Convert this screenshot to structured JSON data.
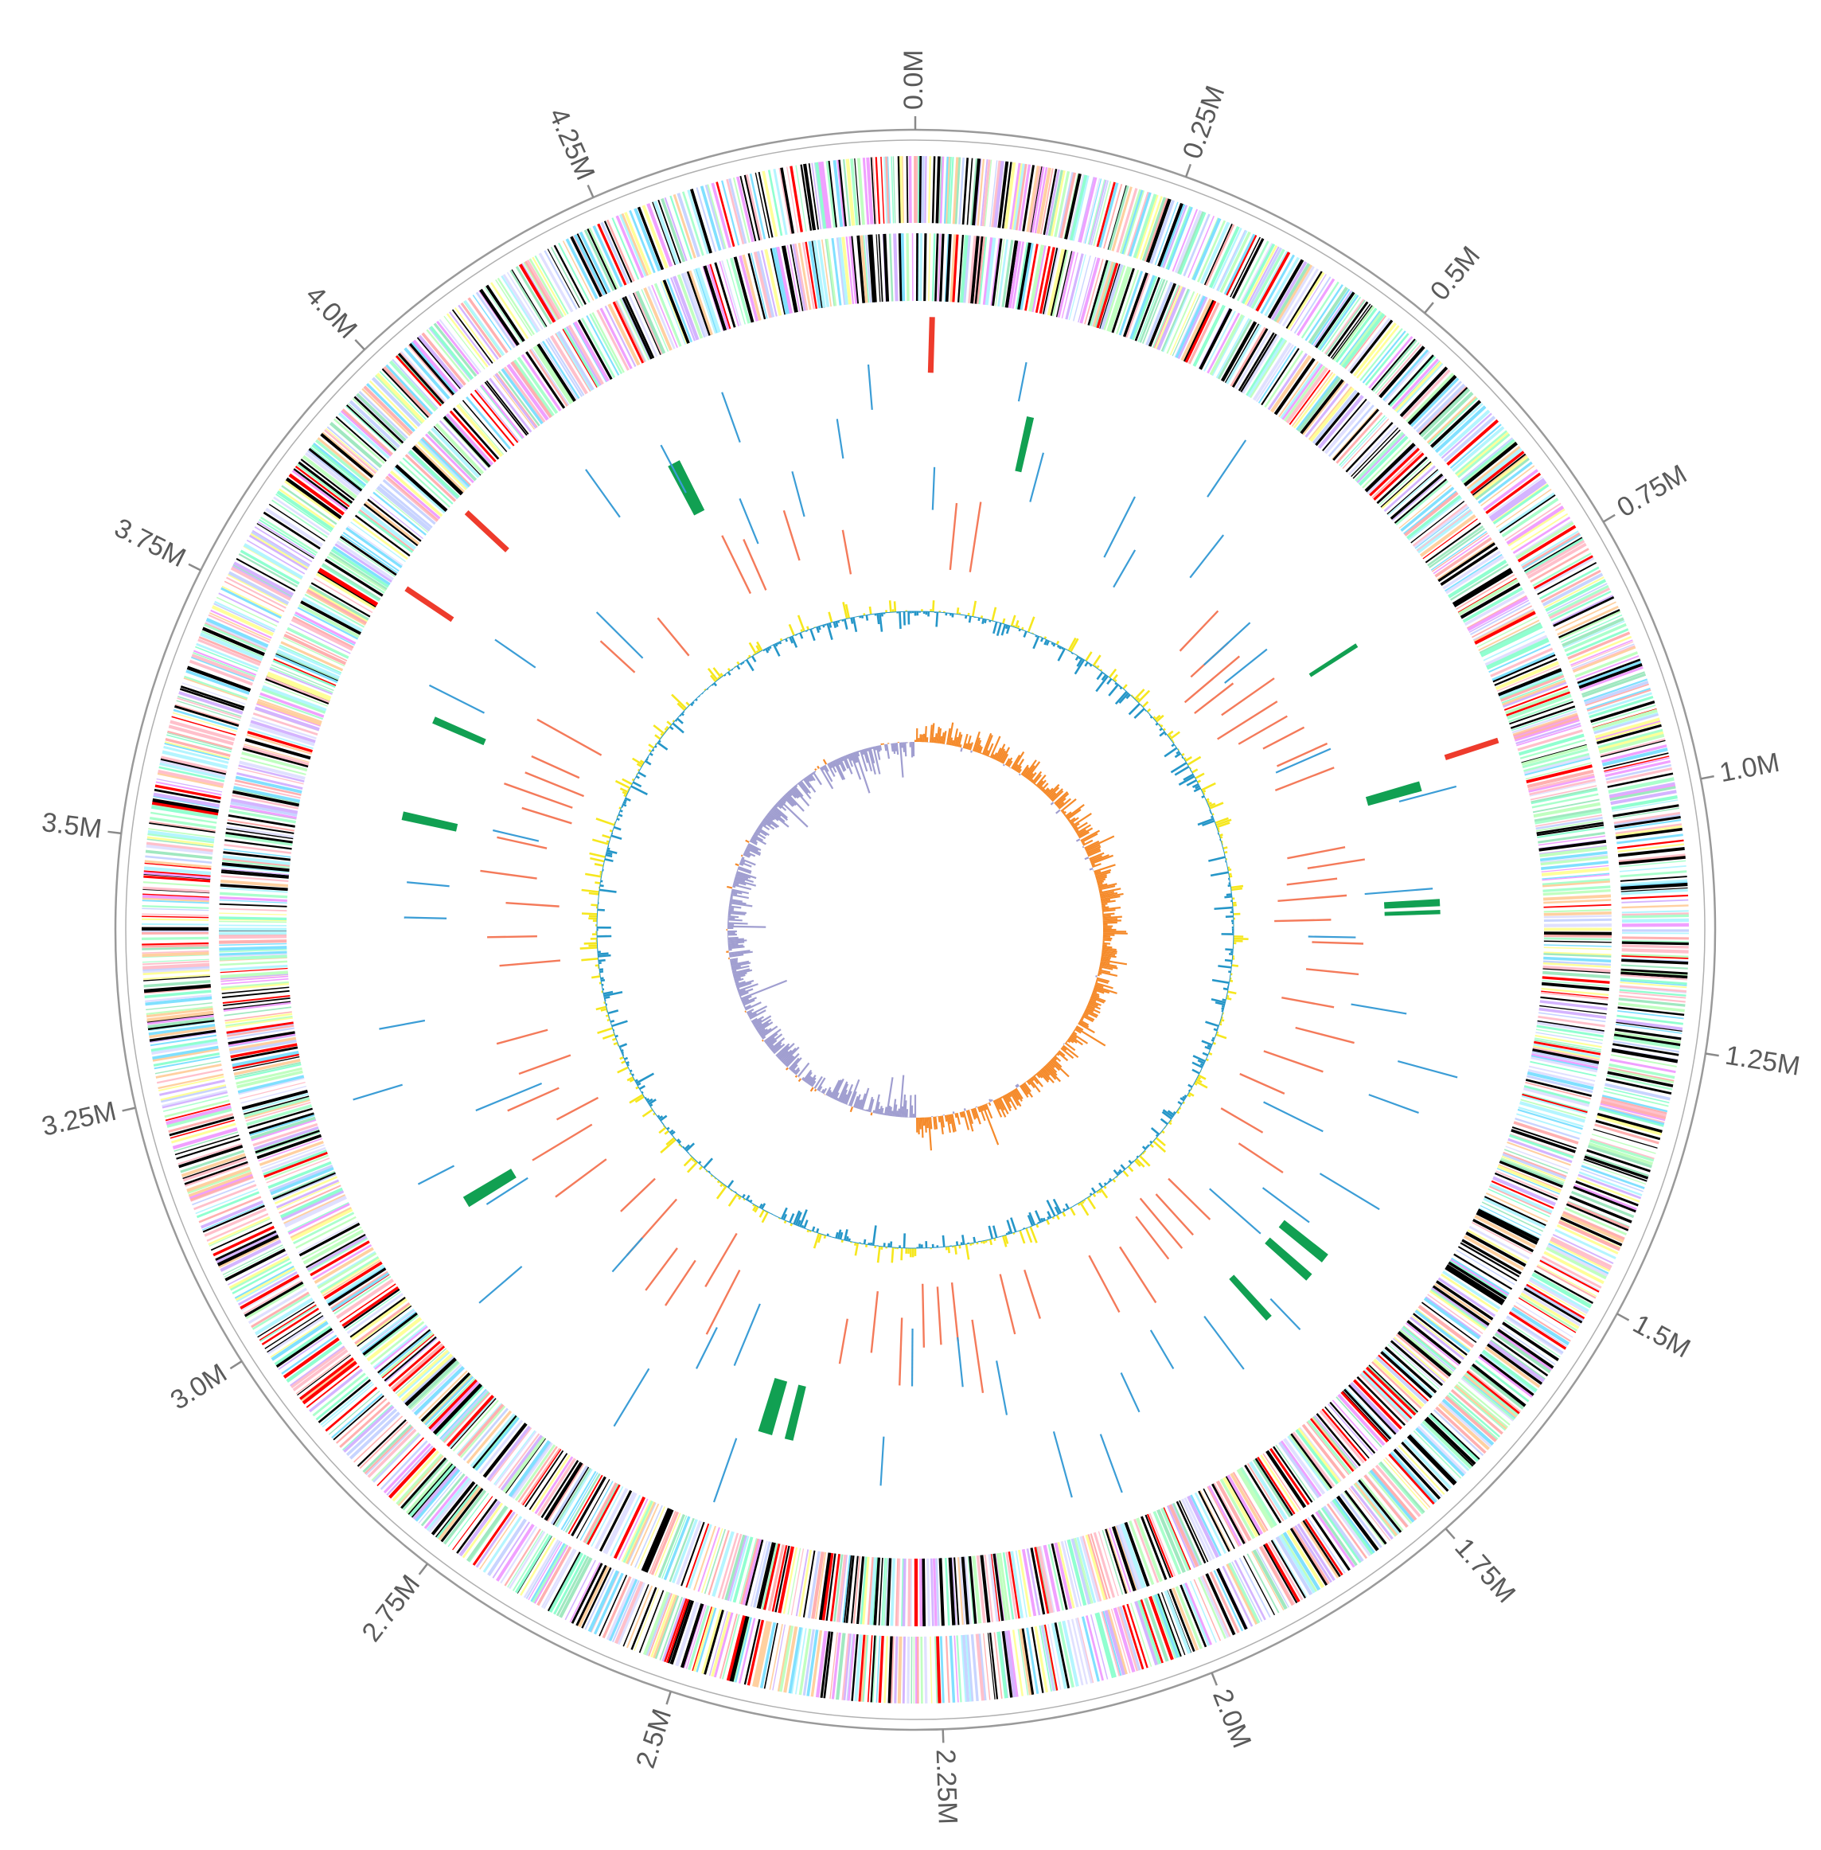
{
  "genome": {
    "length_mb": 4.55,
    "ticks": [
      {
        "value": 0.0,
        "label": "0.0M"
      },
      {
        "value": 0.25,
        "label": "0.25M"
      },
      {
        "value": 0.5,
        "label": "0.5M"
      },
      {
        "value": 0.75,
        "label": "0.75M"
      },
      {
        "value": 1.0,
        "label": "1.0M"
      },
      {
        "value": 1.25,
        "label": "1.25M"
      },
      {
        "value": 1.5,
        "label": "1.5M"
      },
      {
        "value": 1.75,
        "label": "1.75M"
      },
      {
        "value": 2.0,
        "label": "2.0M"
      },
      {
        "value": 2.25,
        "label": "2.25M"
      },
      {
        "value": 2.5,
        "label": "2.5M"
      },
      {
        "value": 2.75,
        "label": "2.75M"
      },
      {
        "value": 3.0,
        "label": "3.0M"
      },
      {
        "value": 3.25,
        "label": "3.25M"
      },
      {
        "value": 3.5,
        "label": "3.5M"
      },
      {
        "value": 3.75,
        "label": "3.75M"
      },
      {
        "value": 4.0,
        "label": "4.0M"
      },
      {
        "value": 4.25,
        "label": "4.25M"
      }
    ]
  },
  "tracks": {
    "cog_palette": [
      "#000000",
      "#000000",
      "#000000",
      "#ff0000",
      "#c8d4ff",
      "#b4f5ff",
      "#ffc0cb",
      "#aaffcc",
      "#ffff99",
      "#d4b4ff",
      "#a0e8c0",
      "#ffb0b0",
      "#c0ffc0",
      "#ffd0a0",
      "#e0e0ff",
      "#90ffd0",
      "#f0a0ff",
      "#80e0ff"
    ],
    "colors": {
      "green_blocks": "#11a052",
      "red_marks": "#ee3b2c",
      "salmon_lines": "#f47a5a",
      "blue_lines": "#3b9dd6",
      "gc_content_high": "#f6e71e",
      "gc_content_low": "#2596c8",
      "gc_skew_positive": "#f58a2a",
      "gc_skew_negative": "#a09ed0"
    },
    "green_blocks_mb": [
      [
        0.155,
        0.01
      ],
      [
        0.93,
        0.014
      ],
      [
        1.095,
        0.01
      ],
      [
        1.62,
        0.014
      ],
      [
        1.655,
        0.012
      ],
      [
        1.735,
        0.01
      ],
      [
        2.445,
        0.012
      ],
      [
        2.475,
        0.02
      ],
      [
        3.01,
        0.016
      ],
      [
        3.565,
        0.012
      ],
      [
        3.705,
        0.01
      ],
      [
        4.195,
        0.018
      ],
      [
        0.72,
        0.006
      ],
      [
        1.11,
        0.006
      ]
    ],
    "red_marks_mb": [
      0.02,
      0.91,
      3.84,
      3.955
    ],
    "salmon_lines_mb": [
      0.07,
      0.11,
      0.55,
      0.6,
      0.63,
      0.66,
      0.695,
      0.73,
      0.76,
      0.79,
      0.83,
      0.87,
      1.0,
      1.025,
      1.05,
      1.08,
      1.12,
      1.16,
      1.21,
      1.27,
      1.32,
      1.38,
      1.44,
      1.52,
      1.56,
      1.7,
      1.74,
      1.77,
      1.8,
      1.86,
      1.92,
      2.05,
      2.1,
      2.17,
      2.2,
      2.23,
      2.26,
      2.3,
      2.35,
      2.4,
      2.62,
      2.66,
      2.7,
      2.74,
      2.8,
      2.86,
      2.95,
      3.02,
      3.06,
      3.11,
      3.16,
      3.22,
      3.35,
      3.4,
      3.46,
      3.51,
      3.57,
      3.63,
      3.66,
      3.69,
      3.72,
      3.78,
      3.95,
      4.05,
      4.22,
      4.25,
      4.33,
      4.42
    ],
    "blue_lines_mb": [
      0.03,
      0.14,
      0.19,
      0.34,
      0.38,
      0.43,
      0.48,
      0.6,
      0.65,
      0.84,
      0.95,
      1.08,
      1.15,
      1.26,
      1.33,
      1.39,
      1.47,
      1.53,
      1.6,
      1.66,
      1.72,
      1.81,
      1.89,
      1.96,
      2.02,
      2.08,
      2.14,
      2.2,
      2.28,
      2.32,
      2.52,
      2.56,
      2.61,
      2.67,
      2.8,
      2.9,
      3.0,
      3.07,
      3.13,
      3.2,
      3.28,
      3.43,
      3.48,
      3.58,
      3.75,
      3.85,
      3.98,
      4.1,
      4.2,
      4.27,
      4.3,
      4.36,
      4.44,
      4.49
    ]
  }
}
